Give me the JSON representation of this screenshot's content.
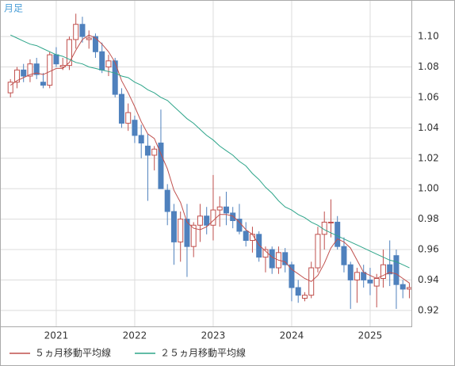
{
  "chart_data": {
    "type": "candlestick",
    "label": "月足",
    "categories": [
      null,
      null,
      null,
      null,
      null,
      null,
      null,
      "2021",
      null,
      null,
      null,
      null,
      null,
      null,
      null,
      null,
      null,
      null,
      null,
      "2022",
      null,
      null,
      null,
      null,
      null,
      null,
      null,
      null,
      null,
      null,
      null,
      "2023",
      null,
      null,
      null,
      null,
      null,
      null,
      null,
      null,
      null,
      null,
      null,
      "2024",
      null,
      null,
      null,
      null,
      null,
      null,
      null,
      null,
      null,
      null,
      null,
      "2025",
      null,
      null,
      null,
      null,
      null,
      null
    ],
    "open": [
      1.063,
      1.07,
      1.078,
      1.074,
      1.082,
      1.07,
      1.068,
      1.088,
      1.08,
      1.081,
      1.098,
      1.108,
      1.098,
      1.1,
      1.09,
      1.08,
      1.084,
      1.062,
      1.043,
      1.045,
      1.035,
      1.028,
      1.022,
      1.03,
      0.999,
      0.985,
      0.965,
      0.98,
      0.962,
      0.976,
      0.982,
      0.976,
      0.986,
      0.988,
      0.984,
      0.98,
      0.972,
      0.966,
      0.97,
      0.955,
      0.96,
      0.948,
      0.958,
      0.95,
      0.935,
      0.928,
      0.93,
      0.948,
      0.97,
      0.978,
      0.978,
      0.962,
      0.95,
      0.94,
      0.945,
      0.94,
      0.936,
      0.941,
      0.95,
      0.956,
      0.937,
      0.934
    ],
    "high": [
      1.072,
      1.08,
      1.082,
      1.085,
      1.086,
      1.076,
      1.09,
      1.093,
      1.086,
      1.1,
      1.115,
      1.113,
      1.104,
      1.102,
      1.096,
      1.088,
      1.086,
      1.066,
      1.056,
      1.048,
      1.042,
      1.036,
      1.028,
      1.052,
      1.003,
      0.99,
      0.985,
      0.99,
      0.978,
      0.99,
      0.988,
      1.009,
      0.995,
      0.998,
      0.988,
      0.99,
      0.978,
      0.975,
      0.972,
      0.962,
      0.962,
      0.962,
      0.961,
      0.952,
      0.94,
      0.932,
      0.952,
      0.975,
      0.985,
      0.993,
      0.982,
      0.968,
      0.952,
      0.948,
      0.95,
      0.948,
      0.944,
      0.96,
      0.966,
      0.96,
      0.94,
      0.938
    ],
    "low": [
      1.06,
      1.066,
      1.07,
      1.07,
      1.072,
      1.066,
      1.066,
      1.08,
      1.078,
      1.078,
      1.092,
      1.096,
      1.092,
      1.086,
      1.076,
      1.074,
      1.06,
      1.04,
      1.038,
      1.03,
      1.02,
      0.992,
      1.012,
      1.0,
      0.976,
      0.95,
      0.952,
      0.942,
      0.955,
      0.965,
      0.97,
      0.966,
      0.975,
      0.976,
      0.974,
      0.97,
      0.962,
      0.958,
      0.952,
      0.945,
      0.944,
      0.944,
      0.945,
      0.926,
      0.925,
      0.926,
      0.928,
      0.945,
      0.96,
      0.968,
      0.96,
      0.945,
      0.921,
      0.925,
      0.935,
      0.93,
      0.922,
      0.935,
      0.936,
      0.921,
      0.928,
      0.928
    ],
    "close": [
      1.07,
      1.078,
      1.074,
      1.082,
      1.075,
      1.068,
      1.088,
      1.082,
      1.081,
      1.098,
      1.108,
      1.1,
      1.099,
      1.09,
      1.078,
      1.084,
      1.062,
      1.043,
      1.05,
      1.035,
      1.03,
      1.022,
      1.026,
      1.0,
      0.985,
      0.965,
      0.98,
      0.962,
      0.976,
      0.982,
      0.976,
      0.986,
      0.988,
      0.984,
      0.979,
      0.972,
      0.966,
      0.97,
      0.955,
      0.96,
      0.948,
      0.958,
      0.95,
      0.935,
      0.93,
      0.93,
      0.948,
      0.97,
      0.978,
      0.978,
      0.962,
      0.95,
      0.94,
      0.945,
      0.94,
      0.938,
      0.941,
      0.95,
      0.944,
      0.937,
      0.934,
      0.935
    ],
    "up_color": "#c0504d",
    "down_color": "#4f81bd",
    "series": [
      {
        "name": "５ヵ月移動平均線",
        "color": "#c0504d",
        "values": [
          1.068,
          1.071,
          1.073,
          1.075,
          1.076,
          1.075,
          1.077,
          1.079,
          1.079,
          1.083,
          1.091,
          1.098,
          1.101,
          1.099,
          1.095,
          1.09,
          1.083,
          1.071,
          1.063,
          1.054,
          1.044,
          1.036,
          1.033,
          1.023,
          1.013,
          0.999,
          0.991,
          0.978,
          0.974,
          0.973,
          0.975,
          0.979,
          0.983,
          0.983,
          0.982,
          0.978,
          0.973,
          0.97,
          0.963,
          0.959,
          0.955,
          0.953,
          0.952,
          0.947,
          0.944,
          0.941,
          0.939,
          0.943,
          0.951,
          0.961,
          0.967,
          0.965,
          0.961,
          0.953,
          0.945,
          0.943,
          0.941,
          0.943,
          0.945,
          0.944,
          0.941,
          0.938
        ]
      },
      {
        "name": "２５ヵ月移動平均線",
        "color": "#2ea58a",
        "values": [
          1.101,
          1.099,
          1.097,
          1.095,
          1.094,
          1.092,
          1.09,
          1.088,
          1.087,
          1.085,
          1.083,
          1.082,
          1.08,
          1.079,
          1.078,
          1.077,
          1.076,
          1.074,
          1.073,
          1.07,
          1.068,
          1.065,
          1.063,
          1.06,
          1.058,
          1.054,
          1.05,
          1.046,
          1.043,
          1.039,
          1.035,
          1.032,
          1.028,
          1.025,
          1.022,
          1.018,
          1.015,
          1.01,
          1.006,
          1.001,
          0.997,
          0.992,
          0.988,
          0.986,
          0.983,
          0.981,
          0.978,
          0.976,
          0.973,
          0.971,
          0.969,
          0.967,
          0.965,
          0.963,
          0.961,
          0.959,
          0.957,
          0.955,
          0.953,
          0.952,
          0.95,
          0.948
        ]
      }
    ],
    "ylim": [
      0.9095,
      1.124
    ],
    "yticks": [
      0.92,
      0.94,
      0.96,
      0.98,
      {
        "value": 1.0,
        "label": "1.00"
      },
      1.02,
      1.04,
      1.06,
      1.08,
      {
        "value": 1.1,
        "label": "1.10"
      }
    ],
    "grid": true
  }
}
